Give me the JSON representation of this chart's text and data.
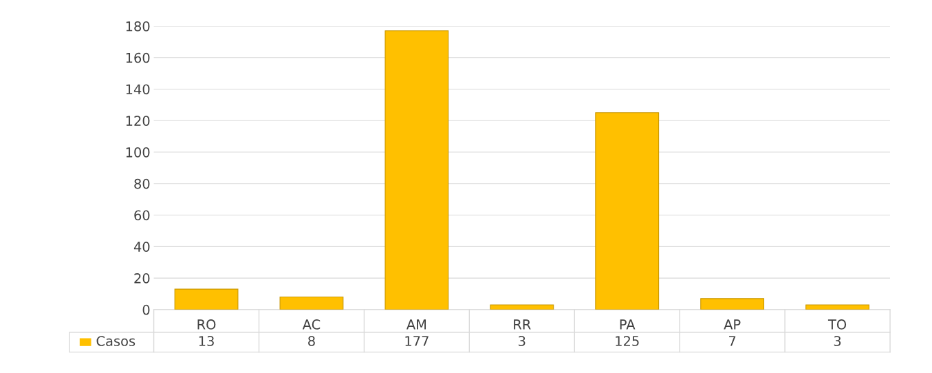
{
  "chart_data": {
    "type": "bar",
    "categories": [
      "RO",
      "AC",
      "AM",
      "RR",
      "PA",
      "AP",
      "TO"
    ],
    "series": [
      {
        "name": "Casos",
        "color": "#ffc000",
        "values": [
          13,
          8,
          177,
          3,
          125,
          7,
          3
        ]
      }
    ],
    "ylim": [
      0,
      180
    ],
    "yticks": [
      0,
      20,
      40,
      60,
      80,
      100,
      120,
      140,
      160,
      180
    ],
    "grid": "y",
    "legend": "bottom",
    "data_labels": true
  }
}
